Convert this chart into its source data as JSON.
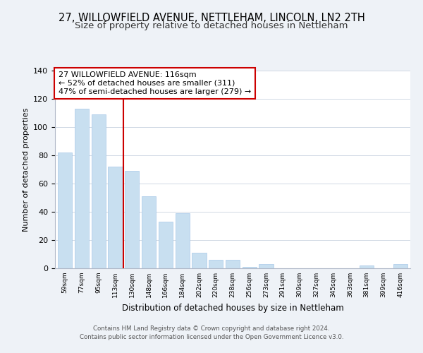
{
  "title": "27, WILLOWFIELD AVENUE, NETTLEHAM, LINCOLN, LN2 2TH",
  "subtitle": "Size of property relative to detached houses in Nettleham",
  "xlabel": "Distribution of detached houses by size in Nettleham",
  "ylabel": "Number of detached properties",
  "categories": [
    "59sqm",
    "77sqm",
    "95sqm",
    "113sqm",
    "130sqm",
    "148sqm",
    "166sqm",
    "184sqm",
    "202sqm",
    "220sqm",
    "238sqm",
    "256sqm",
    "273sqm",
    "291sqm",
    "309sqm",
    "327sqm",
    "345sqm",
    "363sqm",
    "381sqm",
    "399sqm",
    "416sqm"
  ],
  "values": [
    82,
    113,
    109,
    72,
    69,
    51,
    33,
    39,
    11,
    6,
    6,
    1,
    3,
    0,
    0,
    0,
    0,
    0,
    2,
    0,
    3
  ],
  "bar_color": "#c8dff0",
  "bar_edge_color": "#a8c8e8",
  "vline_x": 3.5,
  "vline_color": "#cc0000",
  "annotation_line1": "27 WILLOWFIELD AVENUE: 116sqm",
  "annotation_line2": "← 52% of detached houses are smaller (311)",
  "annotation_line3": "47% of semi-detached houses are larger (279) →",
  "ylim": [
    0,
    140
  ],
  "yticks": [
    0,
    20,
    40,
    60,
    80,
    100,
    120,
    140
  ],
  "background_color": "#eef2f7",
  "plot_background": "#ffffff",
  "footer_line1": "Contains HM Land Registry data © Crown copyright and database right 2024.",
  "footer_line2": "Contains public sector information licensed under the Open Government Licence v3.0.",
  "title_fontsize": 10.5,
  "subtitle_fontsize": 9.5
}
